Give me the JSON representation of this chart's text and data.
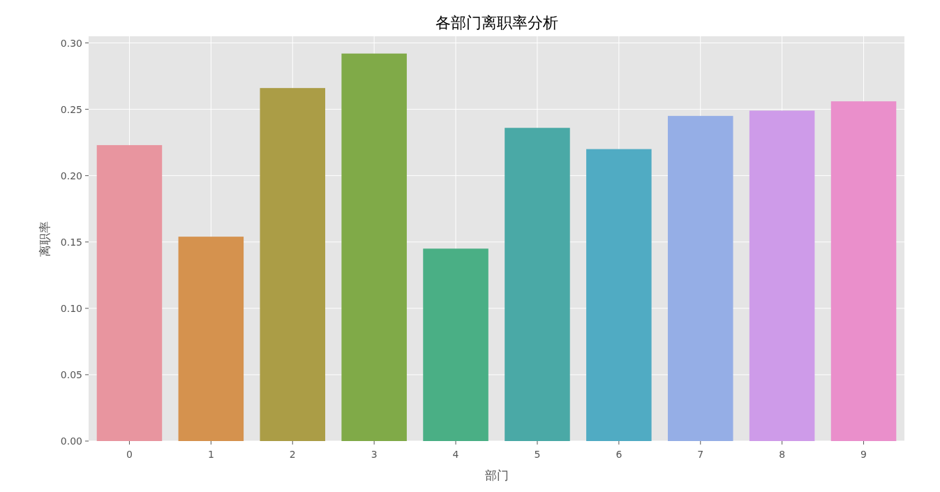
{
  "chart_data": {
    "type": "bar",
    "title": "各部门离职率分析",
    "xlabel": "部门",
    "ylabel": "离职率",
    "categories": [
      "0",
      "1",
      "2",
      "3",
      "4",
      "5",
      "6",
      "7",
      "8",
      "9"
    ],
    "values": [
      0.223,
      0.154,
      0.266,
      0.292,
      0.145,
      0.236,
      0.22,
      0.245,
      0.249,
      0.256
    ],
    "colors": [
      "#e8959f",
      "#d5924e",
      "#ab9d46",
      "#80aa48",
      "#4aaf85",
      "#4aa9a6",
      "#50abc3",
      "#95aee6",
      "#ce9be9",
      "#ea8fcb"
    ],
    "ylim": [
      0,
      0.305
    ],
    "yticks": [
      {
        "value": 0,
        "label": "0.00"
      },
      {
        "value": 0.05,
        "label": "0.05"
      },
      {
        "value": 0.1,
        "label": "0.10"
      },
      {
        "value": 0.15,
        "label": "0.15"
      },
      {
        "value": 0.2,
        "label": "0.20"
      },
      {
        "value": 0.25,
        "label": "0.25"
      },
      {
        "value": 0.3,
        "label": "0.30"
      }
    ],
    "grid": true
  }
}
